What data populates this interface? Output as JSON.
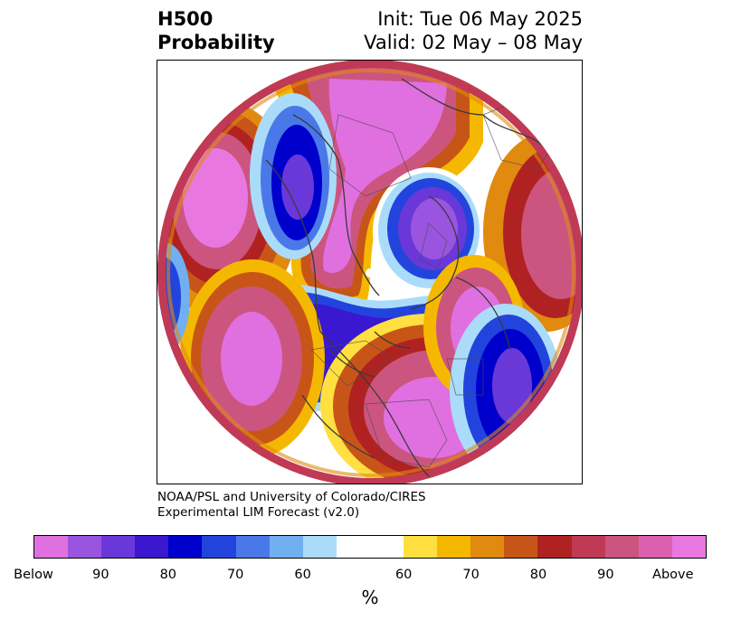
{
  "header": {
    "title_line1": "H500",
    "title_line2": "Probability",
    "init": "Init: Tue 06 May 2025",
    "valid": "Valid: 02 May – 08 May"
  },
  "credit": {
    "line1": "NOAA/PSL and University of Colorado/CIRES",
    "line2": "Experimental LIM Forecast (v2.0)"
  },
  "colorbar": {
    "unit": "%",
    "colors": [
      "#e070e0",
      "#9a55e0",
      "#6a38d8",
      "#3a18d0",
      "#0000cc",
      "#2244dd",
      "#4a78e8",
      "#70b0f0",
      "#aadcfa",
      "#ffffff",
      "#ffe040",
      "#f5b800",
      "#e08a10",
      "#c85518",
      "#b02222",
      "#c03a55",
      "#cc5580",
      "#dc60b0",
      "#e878e0"
    ],
    "labels": [
      "Below",
      "90",
      "80",
      "70",
      "60",
      "60",
      "70",
      "80",
      "90",
      "Above"
    ]
  }
}
